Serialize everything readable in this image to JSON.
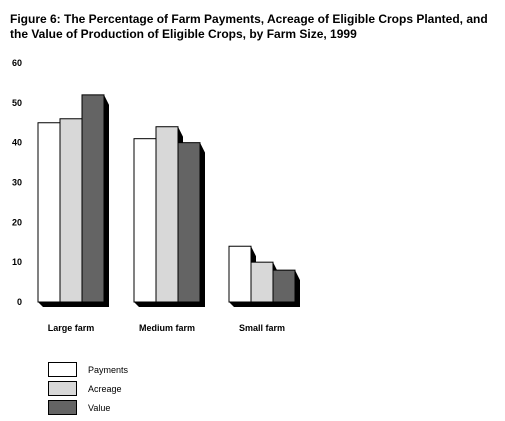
{
  "title": "Figure 6: The Percentage of Farm Payments, Acreage of Eligible Crops Planted, and the Value of Production of Eligible Crops, by Farm Size, 1999",
  "chart_data": {
    "type": "bar",
    "title": "Figure 6: The Percentage of Farm Payments, Acreage of Eligible Crops Planted, and the Value of Production of Eligible Crops, by Farm Size, 1999",
    "xlabel": "",
    "ylabel": "",
    "categories": [
      "Large farm",
      "Medium farm",
      "Small farm"
    ],
    "series": [
      {
        "name": "Payments",
        "values": [
          45,
          41,
          14
        ],
        "color": "#ffffff"
      },
      {
        "name": "Acreage",
        "values": [
          46,
          44,
          10
        ],
        "color": "#d8d8d8"
      },
      {
        "name": "Value",
        "values": [
          52,
          40,
          8
        ],
        "color": "#646464"
      }
    ],
    "ylim": [
      0,
      60
    ],
    "yticks": [
      "0",
      "10",
      "20",
      "30",
      "40",
      "50",
      "60"
    ],
    "grid": false,
    "legend_position": "bottom-left",
    "style": "3d-shadow-bars"
  }
}
